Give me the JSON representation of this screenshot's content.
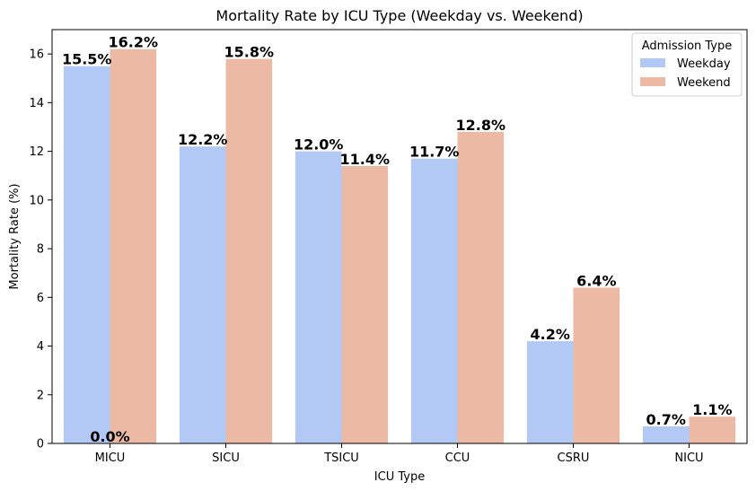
{
  "chart_data": {
    "type": "bar",
    "title": "Mortality Rate by ICU Type (Weekday vs. Weekend)",
    "xlabel": "ICU Type",
    "ylabel": "Mortality Rate (%)",
    "categories": [
      "MICU",
      "SICU",
      "TSICU",
      "CCU",
      "CSRU",
      "NICU"
    ],
    "series": [
      {
        "name": "Weekday",
        "color": "#b3c9f5",
        "values": [
          15.5,
          12.2,
          12.0,
          11.7,
          4.2,
          0.7
        ]
      },
      {
        "name": "Weekend",
        "color": "#ecbaa4",
        "values": [
          16.2,
          15.8,
          11.4,
          12.8,
          6.4,
          1.1
        ]
      }
    ],
    "extra_labels": [
      {
        "category": "MICU",
        "text": "0.0%"
      }
    ],
    "ylim": [
      0,
      17
    ],
    "yticks": [
      0,
      2,
      4,
      6,
      8,
      10,
      12,
      14,
      16
    ],
    "grid": false,
    "legend": {
      "title": "Admission Type",
      "placement": "top-right"
    }
  }
}
